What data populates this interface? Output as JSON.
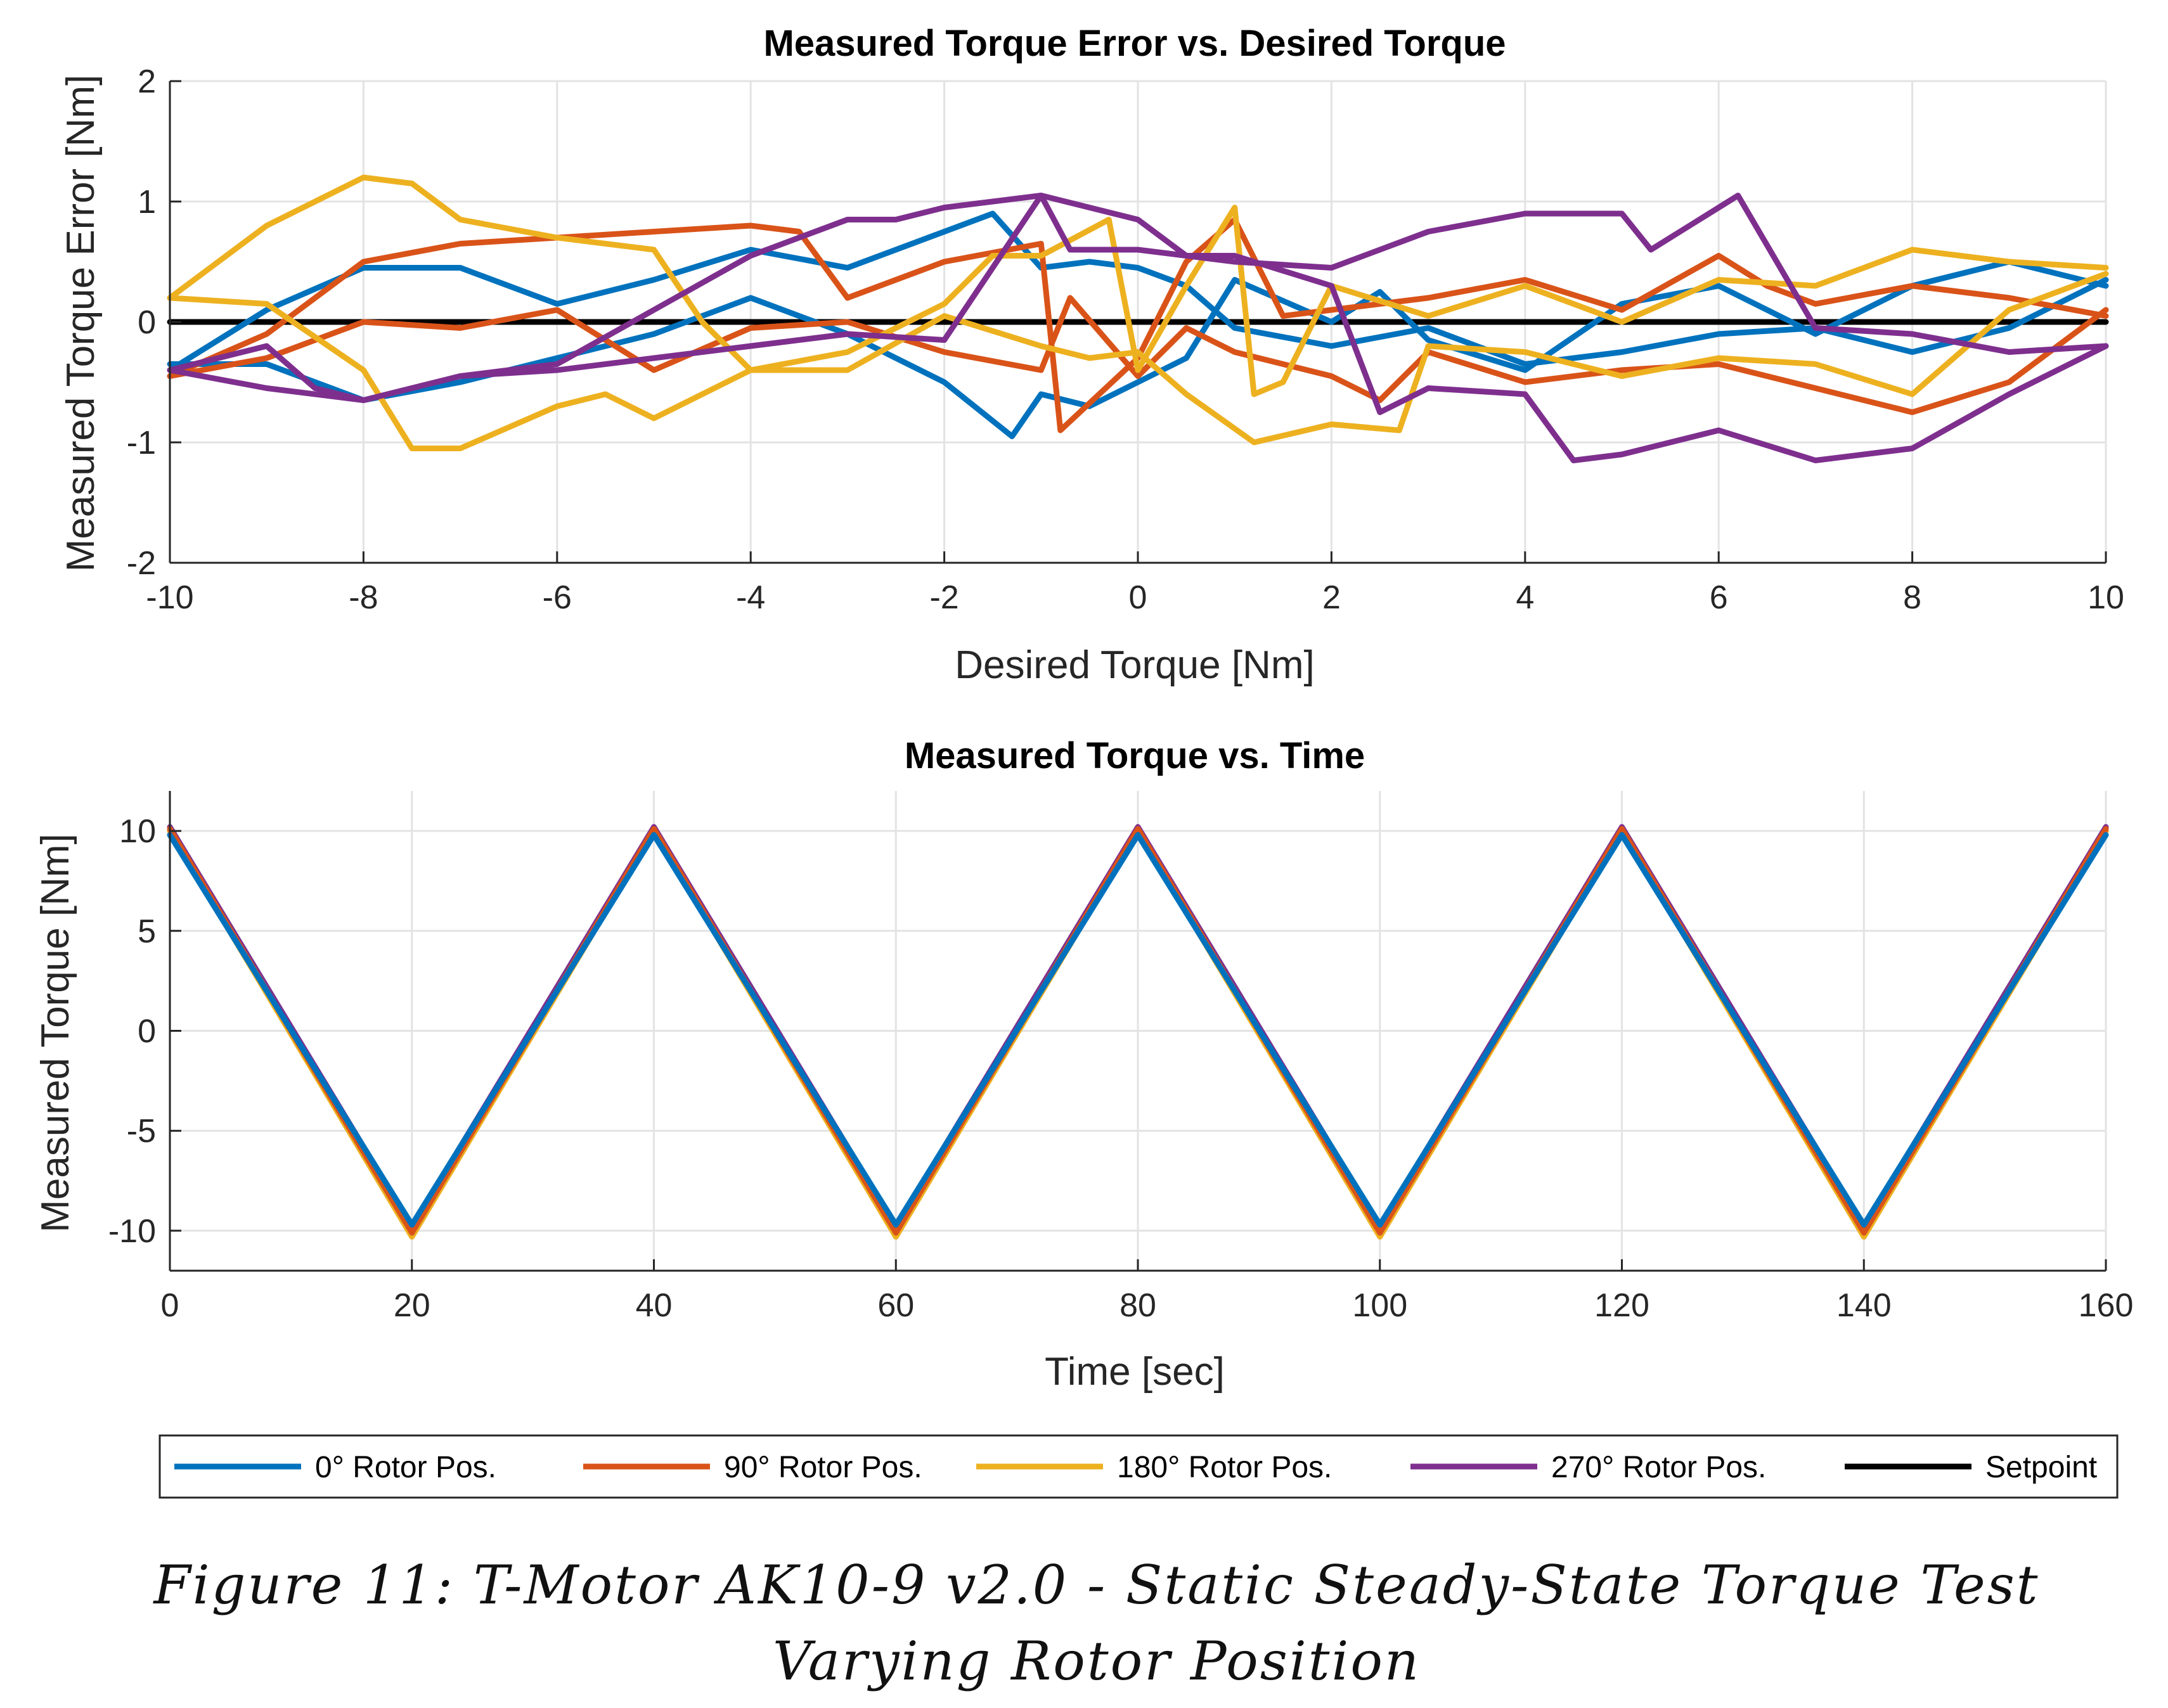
{
  "colors": {
    "blue": "#0072BD",
    "orange": "#D95319",
    "yellow": "#EDB120",
    "purple": "#7E2F8E",
    "black": "#000000"
  },
  "legend": [
    {
      "label": "0° Rotor Pos.",
      "color": "#0072BD"
    },
    {
      "label": "90° Rotor Pos.",
      "color": "#D95319"
    },
    {
      "label": "180° Rotor Pos.",
      "color": "#EDB120"
    },
    {
      "label": "270° Rotor Pos.",
      "color": "#7E2F8E"
    },
    {
      "label": "Setpoint",
      "color": "#000000"
    }
  ],
  "caption": {
    "line1": "Figure 11: T-Motor AK10-9 v2.0 - Static Steady-State Torque Test",
    "line2": "Varying Rotor Position"
  },
  "chart_data": [
    {
      "type": "line",
      "title": "Measured Torque Error vs. Desired Torque",
      "xlabel": "Desired Torque [Nm]",
      "ylabel": "Measured Torque Error [Nm]",
      "xlim": [
        -10,
        10
      ],
      "ylim": [
        -2,
        2
      ],
      "xticks": [
        -10,
        -8,
        -6,
        -4,
        -2,
        0,
        2,
        4,
        6,
        8,
        10
      ],
      "yticks": [
        -2,
        -1,
        0,
        1,
        2
      ],
      "grid": true,
      "series": [
        {
          "name": "Setpoint",
          "color": "#000000",
          "x": [
            -10,
            10
          ],
          "y": [
            0,
            0
          ]
        },
        {
          "name": "0° Rotor Pos.",
          "color": "#0072BD",
          "x": [
            -10,
            -9,
            -8,
            -7,
            -6,
            -5,
            -4,
            -3,
            -2,
            -1.5,
            -1,
            -0.5,
            0,
            0.5,
            1,
            2,
            3,
            4,
            5,
            6,
            7,
            8,
            9,
            10
          ],
          "y": [
            -0.4,
            0.1,
            0.45,
            0.45,
            0.15,
            0.35,
            0.6,
            0.45,
            0.75,
            0.9,
            0.45,
            0.5,
            0.45,
            0.3,
            -0.05,
            -0.2,
            -0.05,
            -0.35,
            -0.25,
            -0.1,
            -0.05,
            -0.25,
            -0.05,
            0.35
          ]
        },
        {
          "name": "0° Rotor Pos.",
          "color": "#0072BD",
          "x": [
            10,
            9,
            8,
            7,
            6,
            5,
            4,
            3,
            2.5,
            2,
            1,
            0.5,
            0,
            -0.5,
            -1,
            -1.3,
            -2,
            -3,
            -4,
            -5,
            -6,
            -7,
            -8,
            -9,
            -10
          ],
          "y": [
            0.3,
            0.5,
            0.3,
            -0.1,
            0.3,
            0.15,
            -0.4,
            -0.15,
            0.25,
            0.0,
            0.35,
            -0.3,
            -0.5,
            -0.7,
            -0.6,
            -0.95,
            -0.5,
            -0.1,
            0.2,
            -0.1,
            -0.3,
            -0.5,
            -0.65,
            -0.35,
            -0.35
          ]
        },
        {
          "name": "90° Rotor Pos.",
          "color": "#D95319",
          "x": [
            -10,
            -9,
            -8,
            -7,
            -6,
            -5,
            -4,
            -3.5,
            -3,
            -2,
            -1,
            -0.8,
            0,
            0.5,
            1,
            1.5,
            2,
            3,
            4,
            5,
            6,
            6.5,
            7,
            8,
            9,
            10
          ],
          "y": [
            -0.45,
            -0.1,
            0.5,
            0.65,
            0.7,
            0.75,
            0.8,
            0.75,
            0.2,
            0.5,
            0.65,
            -0.9,
            -0.3,
            0.5,
            0.85,
            0.05,
            0.1,
            0.2,
            0.35,
            0.1,
            0.55,
            0.3,
            0.15,
            0.3,
            0.2,
            0.05
          ]
        },
        {
          "name": "90° Rotor Pos.",
          "color": "#D95319",
          "x": [
            10,
            9,
            8,
            7,
            6,
            5,
            4,
            3,
            2.5,
            2,
            1,
            0.5,
            0,
            -0.7,
            -1,
            -2,
            -3,
            -4,
            -5,
            -6,
            -7,
            -8,
            -9,
            -10
          ],
          "y": [
            0.1,
            -0.5,
            -0.75,
            -0.55,
            -0.35,
            -0.4,
            -0.5,
            -0.25,
            -0.65,
            -0.45,
            -0.25,
            -0.05,
            -0.45,
            0.2,
            -0.4,
            -0.25,
            0.0,
            -0.05,
            -0.4,
            0.1,
            -0.05,
            0.0,
            -0.3,
            -0.45
          ]
        },
        {
          "name": "180° Rotor Pos.",
          "color": "#EDB120",
          "x": [
            -10,
            -9,
            -8,
            -7.5,
            -7,
            -6,
            -5,
            -4.5,
            -4,
            -3,
            -2,
            -1.5,
            -1,
            -0.3,
            0,
            0.5,
            1,
            1.2,
            1.5,
            2,
            3,
            4,
            5,
            6,
            7,
            8,
            9,
            10
          ],
          "y": [
            0.2,
            0.8,
            1.2,
            1.15,
            0.85,
            0.7,
            0.6,
            0.0,
            -0.4,
            -0.25,
            0.15,
            0.55,
            0.55,
            0.85,
            -0.4,
            0.3,
            0.95,
            -0.6,
            -0.5,
            0.3,
            0.05,
            0.3,
            0.0,
            0.35,
            0.3,
            0.6,
            0.5,
            0.45
          ]
        },
        {
          "name": "180° Rotor Pos.",
          "color": "#EDB120",
          "x": [
            10,
            9,
            8,
            7,
            6,
            5,
            4,
            3,
            2.7,
            2,
            1.2,
            0.5,
            0,
            -0.5,
            -1,
            -2,
            -3,
            -4,
            -5,
            -5.5,
            -6,
            -7,
            -7.5,
            -8,
            -9,
            -10
          ],
          "y": [
            0.4,
            0.1,
            -0.6,
            -0.35,
            -0.3,
            -0.45,
            -0.25,
            -0.2,
            -0.9,
            -0.85,
            -1.0,
            -0.6,
            -0.25,
            -0.3,
            -0.2,
            0.05,
            -0.4,
            -0.4,
            -0.8,
            -0.6,
            -0.7,
            -1.05,
            -1.05,
            -0.4,
            0.15,
            0.2
          ]
        },
        {
          "name": "270° Rotor Pos.",
          "color": "#7E2F8E",
          "x": [
            -10,
            -9,
            -8.5,
            -8,
            -7,
            -6,
            -5,
            -4,
            -3,
            -2.5,
            -2,
            -1,
            -0.7,
            0,
            0.5,
            1,
            2,
            3,
            4,
            5,
            5.3,
            6,
            6.2,
            7,
            8,
            9,
            10
          ],
          "y": [
            -0.4,
            -0.2,
            -0.55,
            -0.65,
            -0.45,
            -0.35,
            0.1,
            0.55,
            0.85,
            0.85,
            0.95,
            1.05,
            0.6,
            0.6,
            0.55,
            0.5,
            0.45,
            0.75,
            0.9,
            0.9,
            0.6,
            0.95,
            1.05,
            -0.05,
            -0.1,
            -0.25,
            -0.2
          ]
        },
        {
          "name": "270° Rotor Pos.",
          "color": "#7E2F8E",
          "x": [
            10,
            9,
            8,
            7,
            6,
            5,
            4.5,
            4,
            3,
            2.5,
            2,
            1,
            0.5,
            0,
            -1,
            -2,
            -3,
            -4,
            -5,
            -6,
            -7,
            -8,
            -9,
            -10
          ],
          "y": [
            -0.2,
            -0.6,
            -1.05,
            -1.15,
            -0.9,
            -1.1,
            -1.15,
            -0.6,
            -0.55,
            -0.75,
            0.3,
            0.55,
            0.55,
            0.85,
            1.05,
            -0.15,
            -0.1,
            -0.2,
            -0.3,
            -0.4,
            -0.45,
            -0.65,
            -0.55,
            -0.4
          ]
        }
      ]
    },
    {
      "type": "line",
      "title": "Measured Torque vs. Time",
      "xlabel": "Time [sec]",
      "ylabel": "Measured Torque [Nm]",
      "xlim": [
        0,
        160
      ],
      "ylim": [
        -12,
        12
      ],
      "xticks": [
        0,
        20,
        40,
        60,
        80,
        100,
        120,
        140,
        160
      ],
      "yticks": [
        -10,
        -5,
        0,
        5,
        10
      ],
      "grid": true,
      "series": [
        {
          "name": "Setpoint",
          "color": "#000000",
          "x": [
            0,
            20,
            40,
            60,
            80,
            100,
            120,
            140,
            160
          ],
          "y": [
            10,
            -10,
            10,
            -10,
            10,
            -10,
            10,
            -10,
            10
          ]
        },
        {
          "name": "270° Rotor Pos.",
          "color": "#7E2F8E",
          "x": [
            0,
            20,
            40,
            60,
            80,
            100,
            120,
            140,
            160
          ],
          "y": [
            10.2,
            -9.8,
            10.2,
            -9.8,
            10.2,
            -9.8,
            10.2,
            -9.8,
            10.2
          ]
        },
        {
          "name": "180° Rotor Pos.",
          "color": "#EDB120",
          "x": [
            0,
            20,
            40,
            60,
            80,
            100,
            120,
            140,
            160
          ],
          "y": [
            10,
            -10.3,
            10,
            -10.3,
            10,
            -10.3,
            10,
            -10.3,
            10
          ]
        },
        {
          "name": "90° Rotor Pos.",
          "color": "#D95319",
          "x": [
            0,
            20,
            40,
            60,
            80,
            100,
            120,
            140,
            160
          ],
          "y": [
            10.1,
            -10.1,
            10.1,
            -10.1,
            10.1,
            -10.1,
            10.1,
            -10.1,
            10.1
          ]
        },
        {
          "name": "0° Rotor Pos.",
          "color": "#0072BD",
          "x": [
            0,
            20,
            40,
            60,
            80,
            100,
            120,
            140,
            160
          ],
          "y": [
            9.8,
            -9.7,
            9.8,
            -9.7,
            9.8,
            -9.7,
            9.8,
            -9.7,
            9.8
          ]
        }
      ]
    }
  ]
}
